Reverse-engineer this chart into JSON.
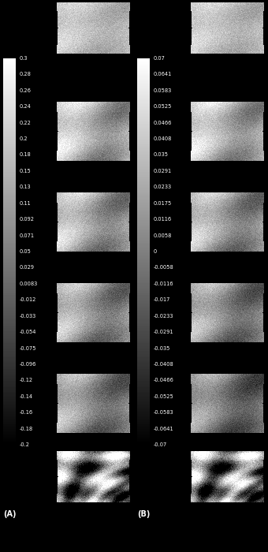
{
  "background_color": "#000000",
  "col_A": {
    "colorbar_ticks": [
      "0.3",
      "0.28",
      "0.26",
      "0.24",
      "0.22",
      "0.2",
      "0.18",
      "0.15",
      "0.13",
      "0.11",
      "0.092",
      "0.071",
      "0.05",
      "0.029",
      "0.0083",
      "-0.012",
      "-0.033",
      "-0.054",
      "-0.075",
      "-0.096",
      "-0.12",
      "-0.14",
      "-0.16",
      "-0.18",
      "-0.2"
    ],
    "label": "(A)"
  },
  "col_B": {
    "colorbar_ticks": [
      "0.07",
      "0.0641",
      "0.0583",
      "0.0525",
      "0.0466",
      "0.0408",
      "0.035",
      "0.0291",
      "0.0233",
      "0.0175",
      "0.0116",
      "0.0058",
      "0",
      "-0.0058",
      "-0.0116",
      "-0.017",
      "-0.0233",
      "-0.0291",
      "-0.035",
      "-0.0408",
      "-0.0466",
      "-0.0525",
      "-0.0583",
      "-0.0641",
      "-0.07"
    ],
    "label": "(B)"
  },
  "text_color": "#ffffff",
  "tick_fontsize": 4.8,
  "label_fontsize": 7.0,
  "fig_width": 3.4,
  "fig_height": 7.0,
  "dpi": 100
}
